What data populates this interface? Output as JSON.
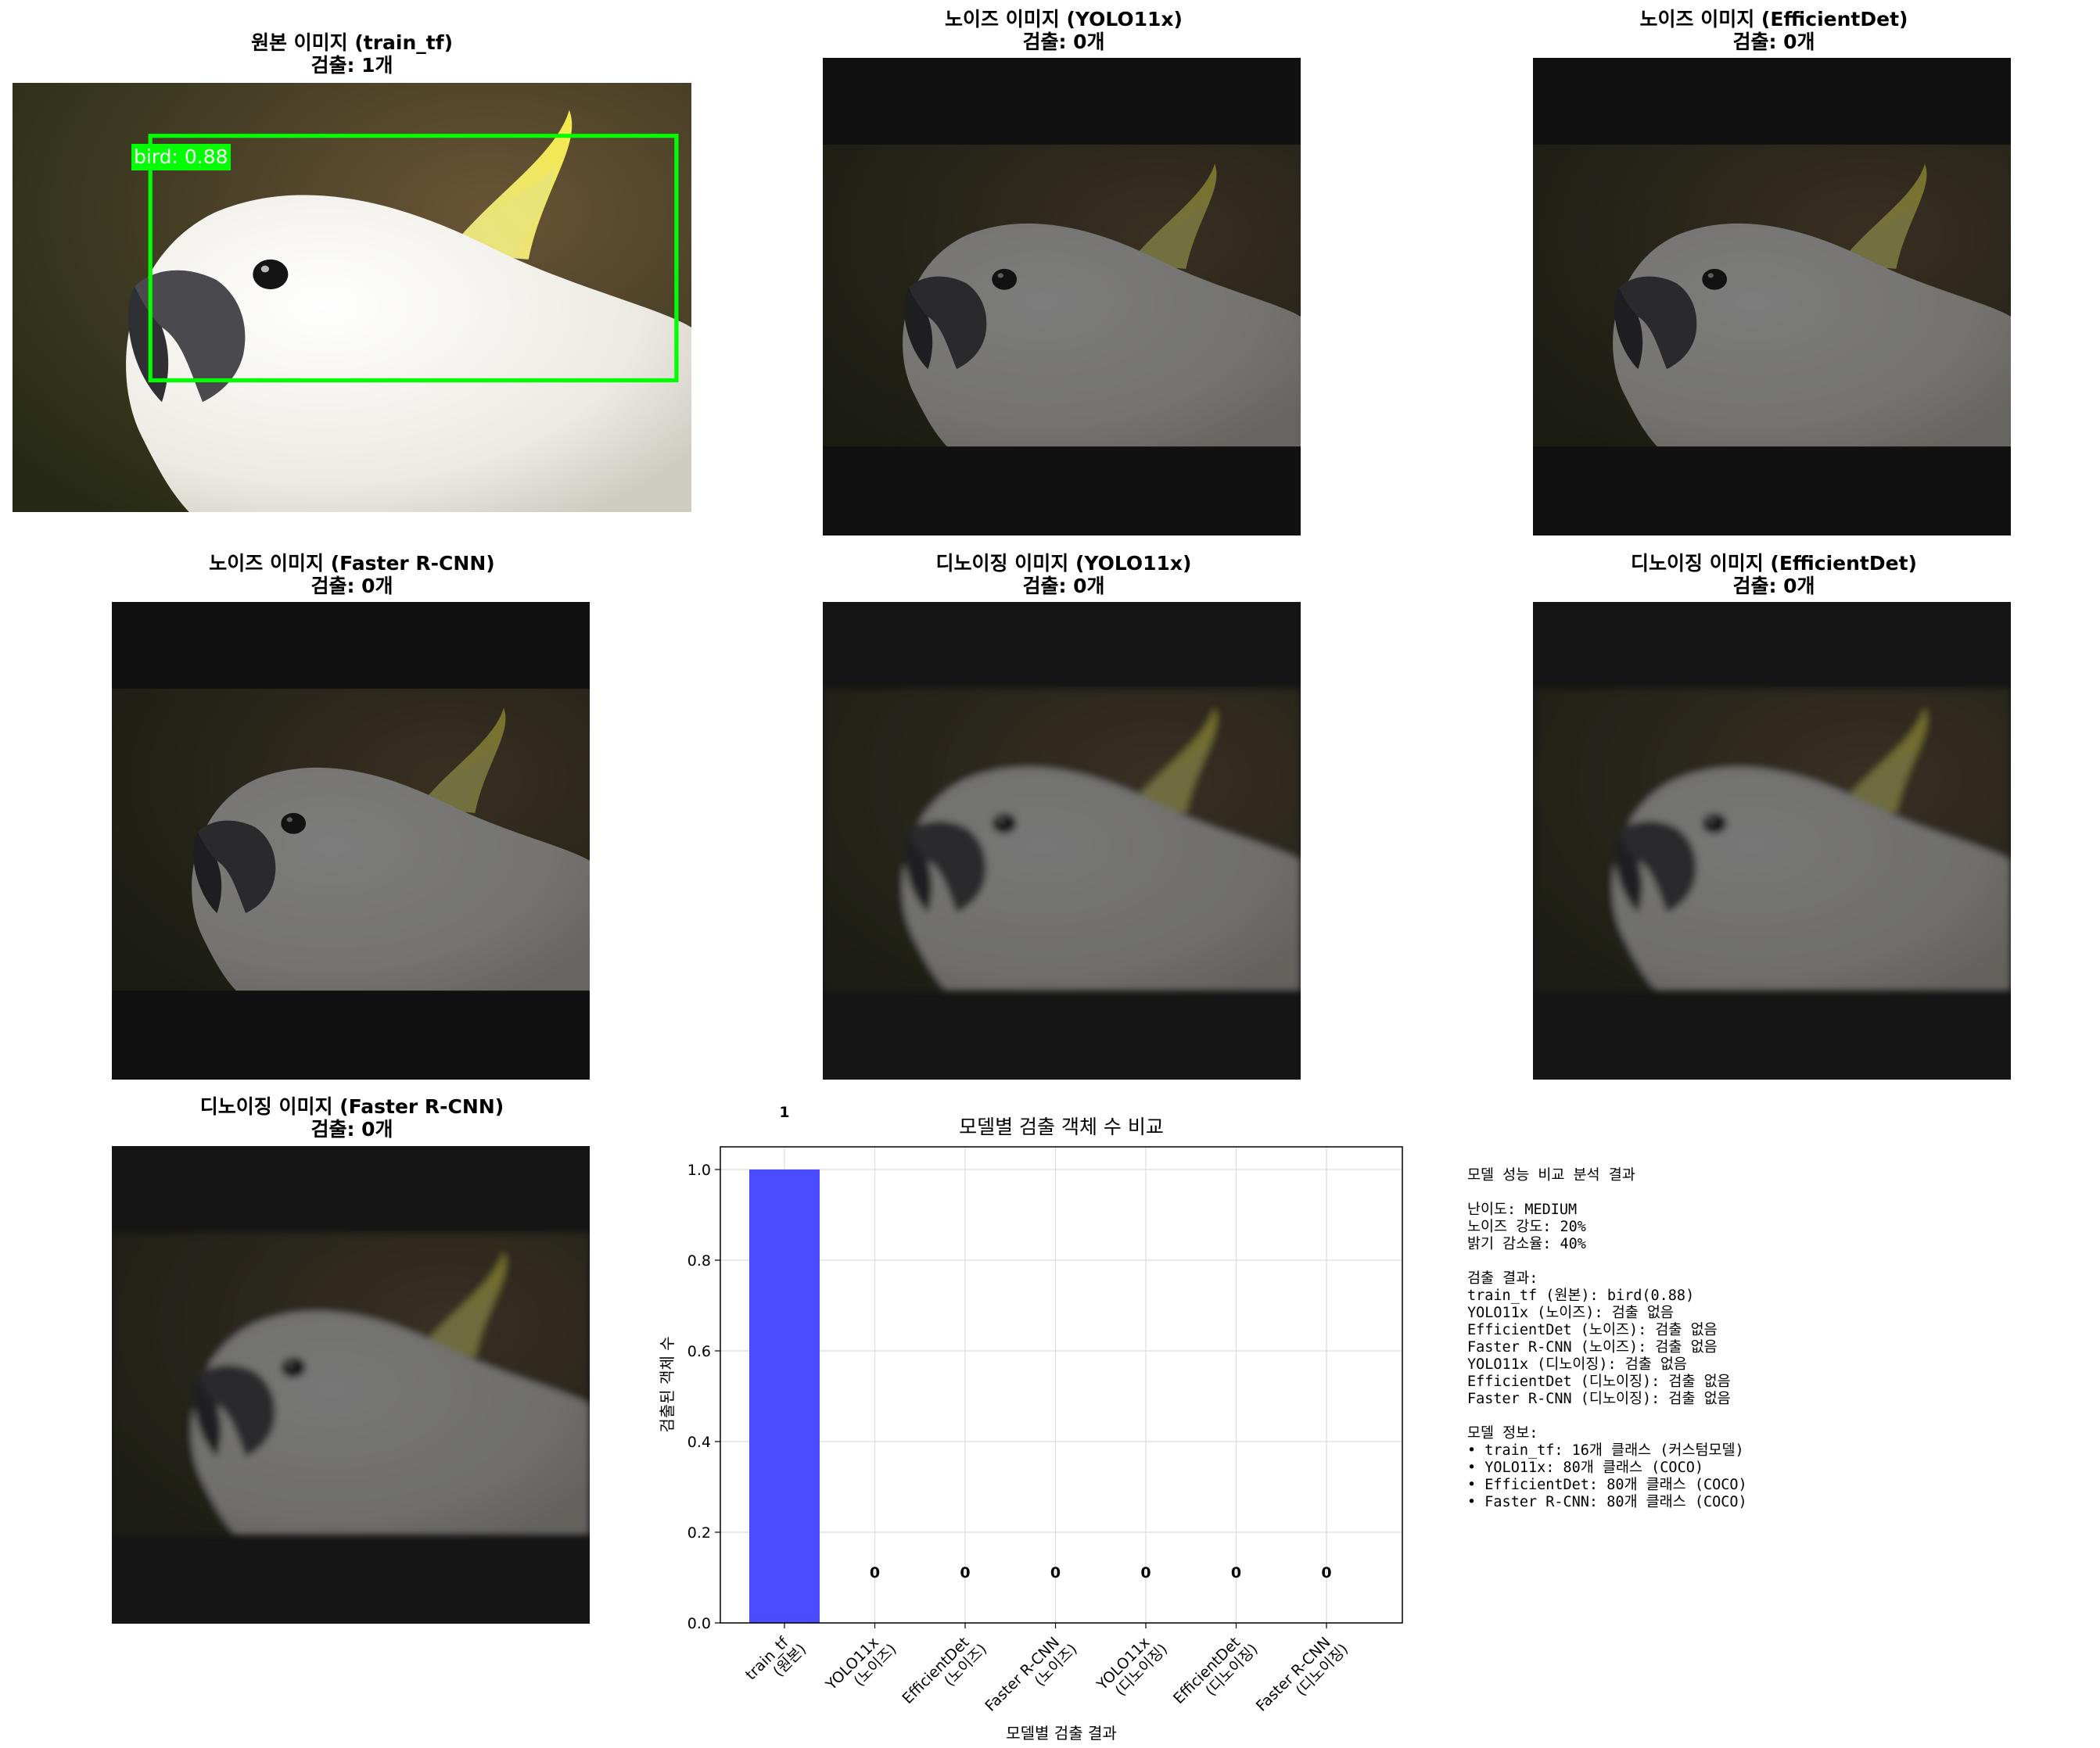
{
  "panels": [
    {
      "title": "원본 이미지 (train_tf)",
      "count": "검출: 1개"
    },
    {
      "title": "노이즈 이미지 (YOLO11x)",
      "count": "검출: 0개"
    },
    {
      "title": "노이즈 이미지 (EfficientDet)",
      "count": "검출: 0개"
    },
    {
      "title": "노이즈 이미지 (Faster R-CNN)",
      "count": "검출: 0개"
    },
    {
      "title": "디노이징 이미지 (YOLO11x)",
      "count": "검출: 0개"
    },
    {
      "title": "디노이징 이미지 (EfficientDet)",
      "count": "검출: 0개"
    },
    {
      "title": "디노이징 이미지 (Faster R-CNN)",
      "count": "검출: 0개"
    }
  ],
  "detection_box": {
    "label": "bird: 0.88",
    "color": "#00ff00"
  },
  "chart_data": {
    "type": "bar",
    "title": "모델별 검출 객체 수 비교",
    "xlabel": "모델별 검출 결과",
    "ylabel": "검출된 객체 수",
    "categories": [
      "train_tf\n(원본)",
      "YOLO11x\n(노이즈)",
      "EfficientDet\n(노이즈)",
      "Faster R-CNN\n(노이즈)",
      "YOLO11x\n(디노이징)",
      "EfficientDet\n(디노이징)",
      "Faster R-CNN\n(디노이징)"
    ],
    "values": [
      1,
      0,
      0,
      0,
      0,
      0,
      0
    ],
    "data_labels": [
      "1",
      "0",
      "0",
      "0",
      "0",
      "0",
      "0"
    ],
    "ylim": [
      0,
      1.05
    ],
    "yticks": [
      "0.0",
      "0.2",
      "0.4",
      "0.6",
      "0.8",
      "1.0"
    ],
    "ytick_values": [
      0,
      0.2,
      0.4,
      0.6,
      0.8,
      1.0
    ],
    "bar_color": "#4b4bff",
    "grid": true
  },
  "info_lines": [
    "모델 성능 비교 분석 결과",
    "",
    "난이도: MEDIUM",
    "노이즈 강도: 20%",
    "밝기 감소율: 40%",
    "",
    "검출 결과:",
    "train_tf (원본): bird(0.88)",
    "YOLO11x (노이즈): 검출 없음",
    "EfficientDet (노이즈): 검출 없음",
    "Faster R-CNN (노이즈): 검출 없음",
    "YOLO11x (디노이징): 검출 없음",
    "EfficientDet (디노이징): 검출 없음",
    "Faster R-CNN (디노이징): 검출 없음",
    "",
    "모델 정보:",
    "• train_tf: 16개 클래스 (커스텀모델)",
    "• YOLO11x: 80개 클래스 (COCO)",
    "• EfficientDet: 80개 클래스 (COCO)",
    "• Faster R-CNN: 80개 클래스 (COCO)"
  ]
}
